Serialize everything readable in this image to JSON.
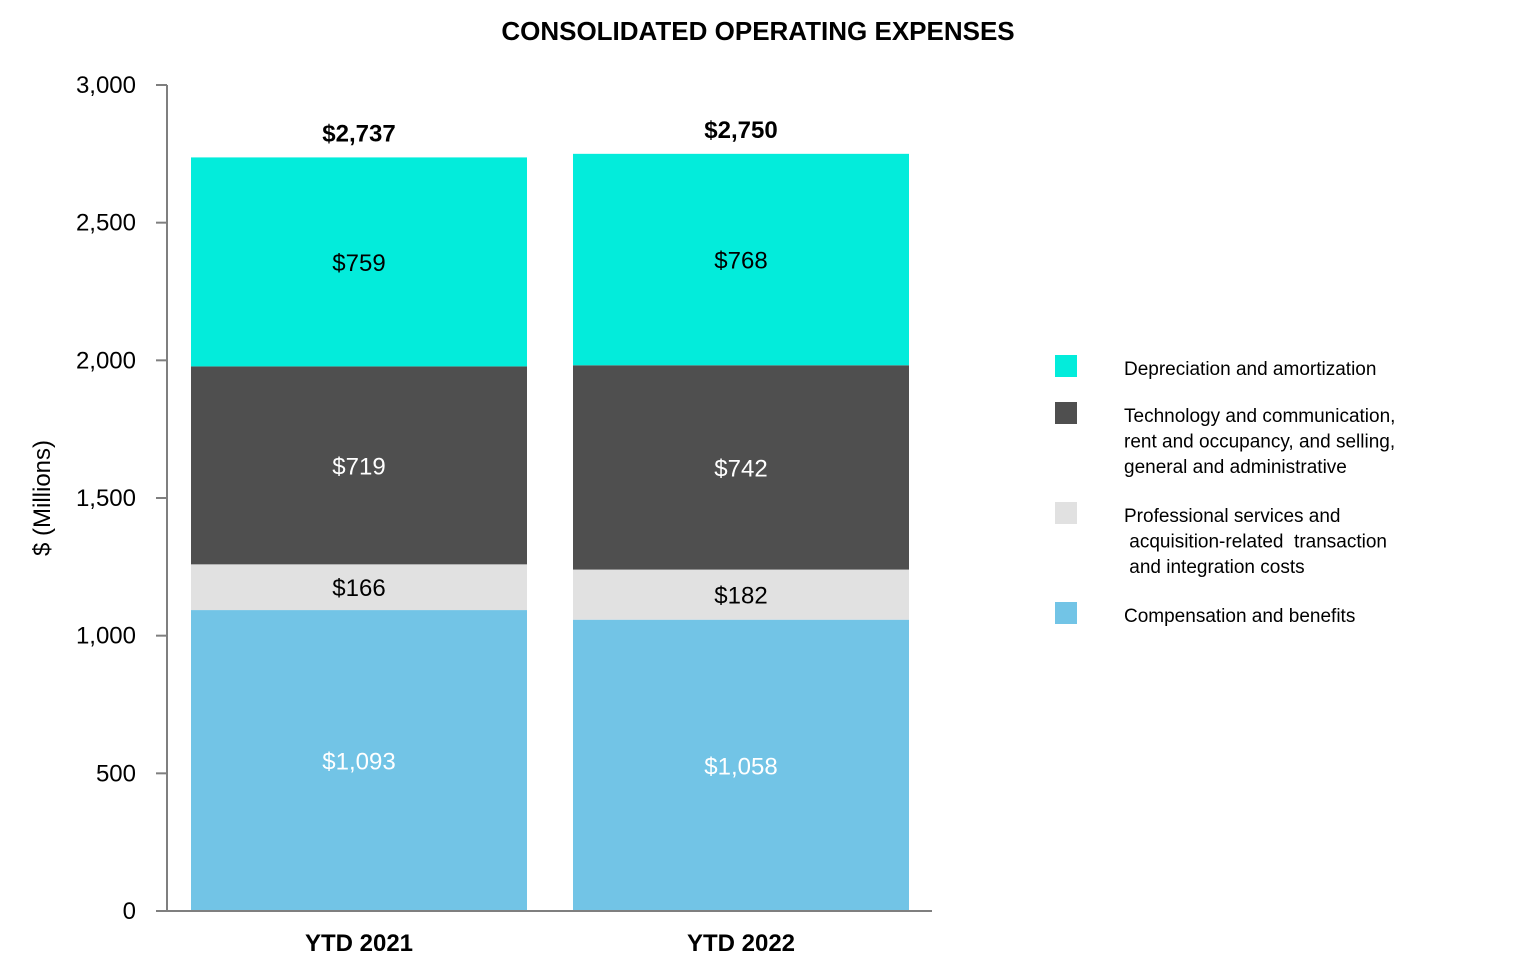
{
  "chart_data": {
    "type": "bar",
    "stacked": true,
    "title": "CONSOLIDATED OPERATING EXPENSES",
    "xlabel": "",
    "ylabel": "$ (Millions)",
    "ylim": [
      0,
      3000
    ],
    "yticks": [
      0,
      500,
      1000,
      1500,
      2000,
      2500,
      3000
    ],
    "ytick_labels": [
      "0",
      "500",
      "1,000",
      "1,500",
      "2,000",
      "2,500",
      "3,000"
    ],
    "categories": [
      "YTD 2021",
      "YTD 2022"
    ],
    "totals": [
      2737,
      2750
    ],
    "total_labels": [
      "$2,737",
      "$2,750"
    ],
    "series": [
      {
        "name": "Compensation and benefits",
        "color": "#72c4e6",
        "label_color": "#ffffff",
        "values": [
          1093,
          1058
        ],
        "labels": [
          "$1,093",
          "$1,058"
        ]
      },
      {
        "name": "Professional services and acquisition-related transaction and integration costs",
        "legend_lines": [
          "Professional services and",
          " acquisition-related  transaction",
          " and integration costs"
        ],
        "color": "#e1e1e1",
        "label_color": "#000000",
        "values": [
          166,
          182
        ],
        "labels": [
          "$166",
          "$182"
        ]
      },
      {
        "name": "Technology and communication, rent and occupancy, and selling, general and administrative",
        "legend_lines": [
          "Technology and communication,",
          "rent and occupancy, and selling,",
          "general and administrative"
        ],
        "color": "#4f4f4f",
        "label_color": "#ffffff",
        "values": [
          719,
          742
        ],
        "labels": [
          "$719",
          "$742"
        ]
      },
      {
        "name": "Depreciation and amortization",
        "color": "#03ecdb",
        "label_color": "#000000",
        "values": [
          759,
          768
        ],
        "labels": [
          "$759",
          "$768"
        ]
      }
    ],
    "legend_order": [
      3,
      2,
      1,
      0
    ],
    "legend_position": "right",
    "grid": false
  }
}
